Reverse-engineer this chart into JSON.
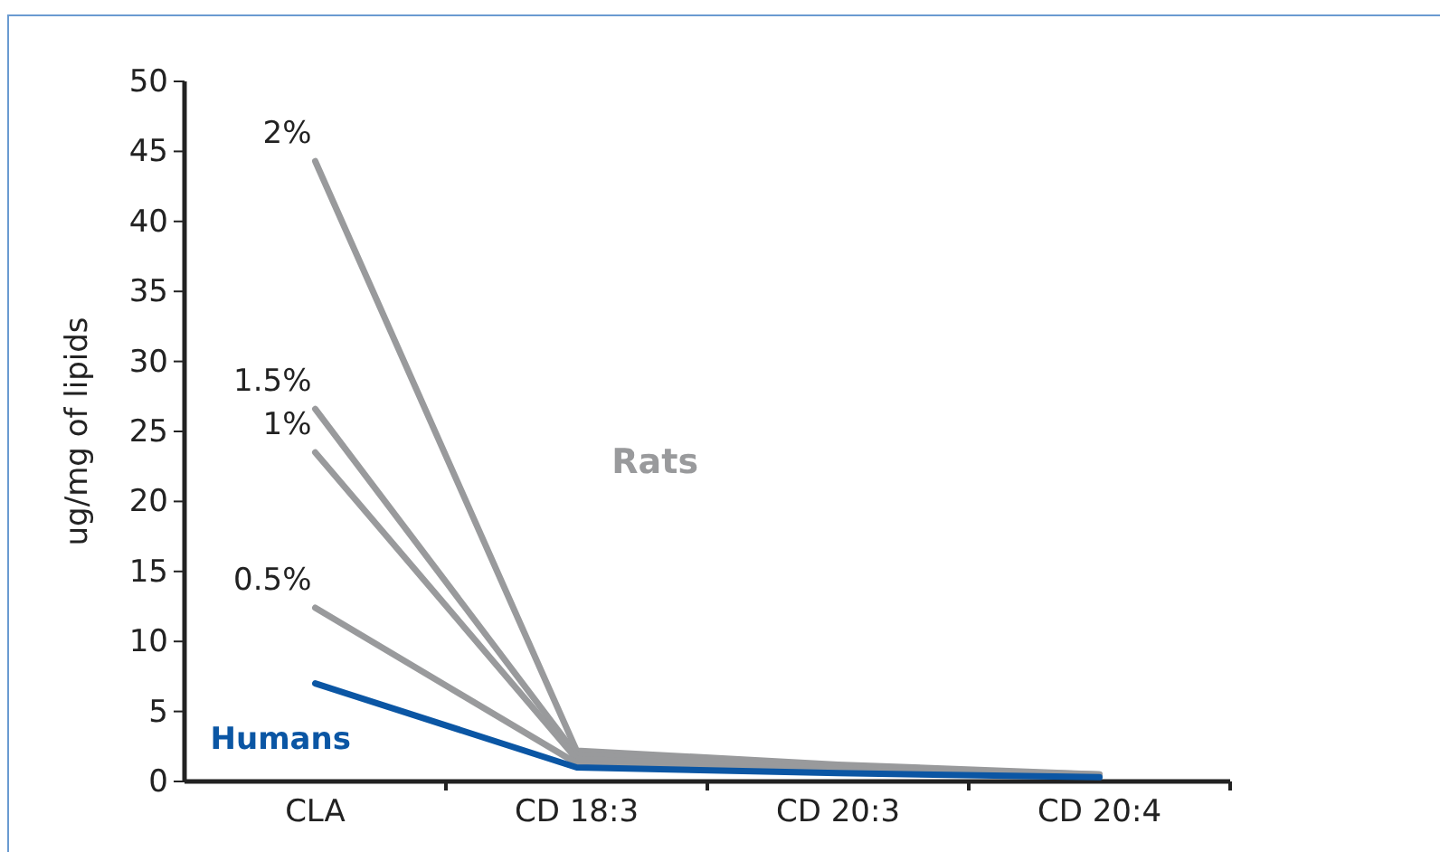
{
  "chart_data": {
    "type": "line",
    "ylabel": "ug/mg of lipids",
    "categories": [
      "CLA",
      "CD 18:3",
      "CD 20:3",
      "CD 20:4"
    ],
    "series": [
      {
        "name": "2%",
        "color": "#999a9c",
        "values": [
          44.3,
          2.2,
          1.2,
          0.5
        ]
      },
      {
        "name": "1.5%",
        "color": "#999a9c",
        "values": [
          26.6,
          1.9,
          1.0,
          0.5
        ]
      },
      {
        "name": "1%",
        "color": "#999a9c",
        "values": [
          23.5,
          1.6,
          0.9,
          0.4
        ]
      },
      {
        "name": "0.5%",
        "color": "#999a9c",
        "values": [
          12.4,
          1.3,
          0.8,
          0.4
        ]
      },
      {
        "name": "Humans",
        "color": "#0b56a4",
        "values": [
          7.0,
          1.0,
          0.6,
          0.3
        ]
      }
    ],
    "annotations": [
      "Rats"
    ],
    "ylim": [
      0,
      50
    ],
    "yticks": [
      0,
      5,
      10,
      15,
      20,
      25,
      30,
      35,
      40,
      45,
      50
    ],
    "grid": false,
    "legend": false,
    "marker": "none",
    "line_style": "solid"
  }
}
